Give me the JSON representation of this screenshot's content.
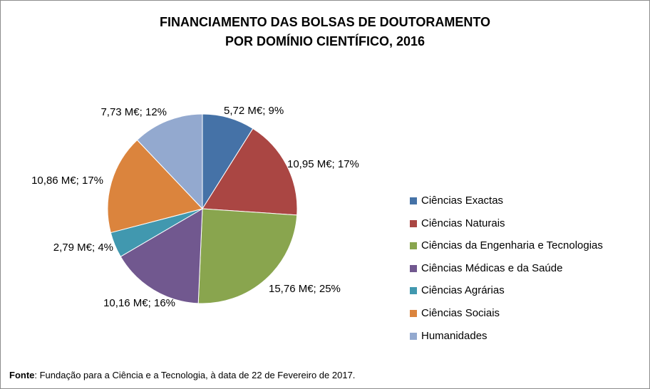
{
  "chart_data": {
    "type": "pie",
    "title_lines": [
      "FINANCIAMENTO DAS BOLSAS DE DOUTORAMENTO",
      "POR DOMÍNIO CIENTÍFICO, 2016"
    ],
    "unit": "M€",
    "categories": [
      "Ciências Exactas",
      "Ciências Naturais",
      "Ciências da Engenharia e Tecnologias",
      "Ciências Médicas e da Saúde",
      "Ciências Agrárias",
      "Ciências Sociais",
      "Humanidades"
    ],
    "values": [
      5.72,
      10.95,
      15.76,
      10.16,
      2.79,
      10.86,
      7.73
    ],
    "percentages": [
      9,
      17,
      25,
      16,
      4,
      17,
      12
    ],
    "data_labels": [
      "5,72 M€; 9%",
      "10,95 M€; 17%",
      "15,76 M€; 25%",
      "10,16 M€; 16%",
      "2,79 M€; 4%",
      "10,86 M€; 17%",
      "7,73 M€; 12%"
    ],
    "colors": [
      "#4572a7",
      "#aa4643",
      "#89a54e",
      "#71588f",
      "#4198af",
      "#db843d",
      "#93a9cf"
    ],
    "legend_position": "right"
  },
  "source": {
    "label": "Fonte",
    "text": ": Fundação para a Ciência e a Tecnologia, à data de 22 de Fevereiro de 2017."
  }
}
